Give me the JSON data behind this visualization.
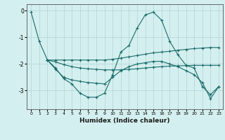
{
  "title": "",
  "xlabel": "Humidex (Indice chaleur)",
  "bg_color": "#d4efef",
  "grid_color": "#b8d8d8",
  "line_color": "#1a6b6b",
  "xlim": [
    -0.5,
    23.5
  ],
  "ylim": [
    -3.7,
    0.25
  ],
  "yticks": [
    0,
    -1,
    -2,
    -3
  ],
  "xticks": [
    0,
    1,
    2,
    3,
    4,
    5,
    6,
    7,
    8,
    9,
    10,
    11,
    12,
    13,
    14,
    15,
    16,
    17,
    18,
    19,
    20,
    21,
    22,
    23
  ],
  "series": [
    {
      "x": [
        0,
        1,
        2,
        3,
        4,
        5,
        6,
        7,
        8,
        9,
        10,
        11,
        12,
        13,
        14,
        15,
        16,
        17,
        18,
        19,
        20,
        21,
        22,
        23
      ],
      "y": [
        -0.05,
        -1.15,
        -1.85,
        -2.15,
        -2.55,
        -2.75,
        -3.1,
        -3.25,
        -3.25,
        -3.1,
        -2.4,
        -1.55,
        -1.3,
        -0.65,
        -0.15,
        -0.05,
        -0.35,
        -1.15,
        -1.65,
        -2.05,
        -2.15,
        -2.85,
        -3.15,
        -2.85
      ]
    },
    {
      "x": [
        2,
        3,
        4,
        5,
        6,
        7,
        8,
        9,
        10,
        11,
        12,
        13,
        14,
        15,
        16,
        17,
        18,
        19,
        20,
        21,
        22,
        23
      ],
      "y": [
        -1.85,
        -1.85,
        -1.85,
        -1.85,
        -1.85,
        -1.85,
        -1.85,
        -1.85,
        -1.82,
        -1.78,
        -1.73,
        -1.68,
        -1.63,
        -1.58,
        -1.55,
        -1.52,
        -1.48,
        -1.45,
        -1.42,
        -1.4,
        -1.38,
        -1.38
      ]
    },
    {
      "x": [
        2,
        3,
        4,
        5,
        6,
        7,
        8,
        9,
        10,
        11,
        12,
        13,
        14,
        15,
        16,
        17,
        18,
        19,
        20,
        21,
        22,
        23
      ],
      "y": [
        -1.85,
        -1.92,
        -2.02,
        -2.1,
        -2.15,
        -2.18,
        -2.2,
        -2.22,
        -2.22,
        -2.22,
        -2.2,
        -2.18,
        -2.15,
        -2.12,
        -2.1,
        -2.08,
        -2.07,
        -2.06,
        -2.05,
        -2.05,
        -2.05,
        -2.05
      ]
    },
    {
      "x": [
        2,
        3,
        4,
        5,
        6,
        7,
        8,
        9,
        10,
        11,
        12,
        13,
        14,
        15,
        16,
        17,
        18,
        19,
        20,
        21,
        22,
        23
      ],
      "y": [
        -1.85,
        -2.2,
        -2.5,
        -2.6,
        -2.65,
        -2.7,
        -2.72,
        -2.75,
        -2.5,
        -2.25,
        -2.1,
        -2.0,
        -1.95,
        -1.9,
        -1.9,
        -2.0,
        -2.1,
        -2.25,
        -2.4,
        -2.7,
        -3.3,
        -2.85
      ]
    }
  ]
}
